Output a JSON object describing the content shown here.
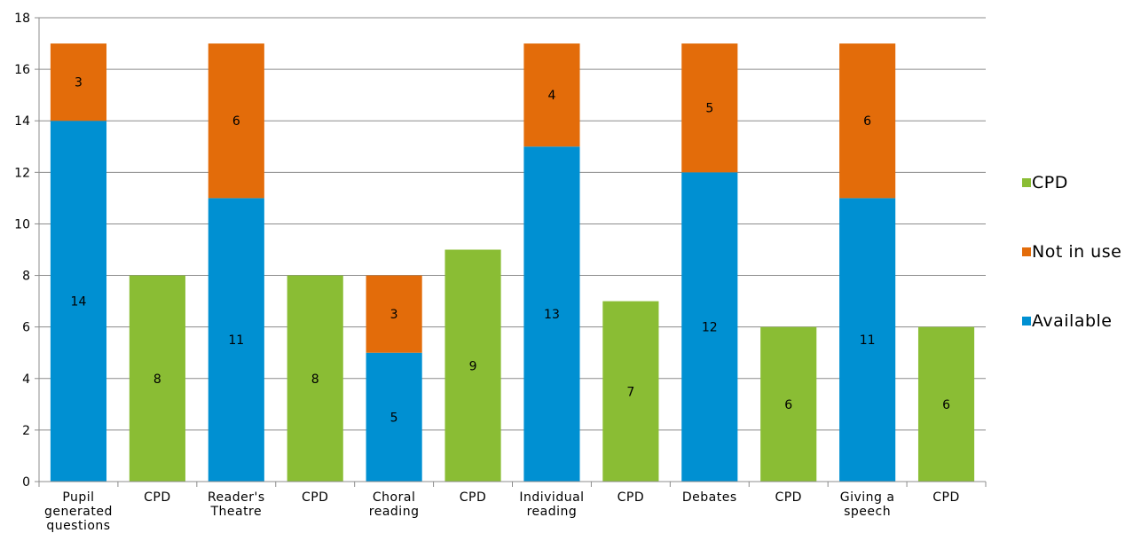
{
  "chart_data": {
    "type": "bar",
    "stacked": true,
    "categories": [
      "Pupil generated questions",
      "CPD",
      "Reader's Theatre",
      "CPD",
      "Choral reading",
      "CPD",
      "Individual reading",
      "CPD",
      "Debates",
      "CPD",
      "Giving a speech",
      "CPD"
    ],
    "category_lines": [
      [
        "Pupil",
        "generated",
        "questions"
      ],
      [
        "CPD"
      ],
      [
        "Reader's",
        "Theatre"
      ],
      [
        "CPD"
      ],
      [
        "Choral",
        "reading"
      ],
      [
        "CPD"
      ],
      [
        "Individual",
        "reading"
      ],
      [
        "CPD"
      ],
      [
        "Debates"
      ],
      [
        "CPD"
      ],
      [
        "Giving a",
        "speech"
      ],
      [
        "CPD"
      ]
    ],
    "series": [
      {
        "name": "Available",
        "color": "#0090D2",
        "values": [
          14,
          null,
          11,
          null,
          5,
          null,
          13,
          null,
          12,
          null,
          11,
          null
        ]
      },
      {
        "name": "Not in use",
        "color": "#E36C0A",
        "values": [
          3,
          null,
          6,
          null,
          3,
          null,
          4,
          null,
          5,
          null,
          6,
          null
        ]
      },
      {
        "name": "CPD",
        "color": "#8ABD34",
        "values": [
          null,
          8,
          null,
          8,
          null,
          9,
          null,
          7,
          null,
          6,
          null,
          6
        ]
      }
    ],
    "legend_order": [
      "CPD",
      "Not in use",
      "Available"
    ],
    "legend_position": "right",
    "ylim": [
      0,
      18
    ],
    "yticks": [
      0,
      2,
      4,
      6,
      8,
      10,
      12,
      14,
      16,
      18
    ],
    "grid": true,
    "data_labels": true,
    "title": "",
    "xlabel": "",
    "ylabel": ""
  }
}
